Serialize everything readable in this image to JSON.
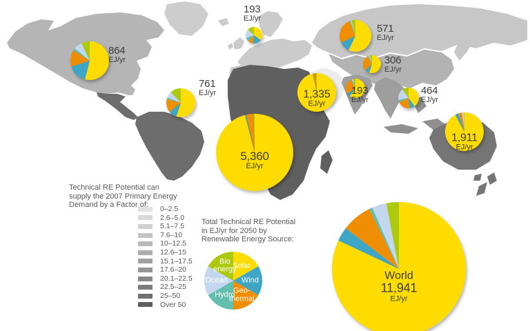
{
  "factor_legend": {
    "title_lines": [
      "Technical RE Potential can",
      "supply the 2007 Primary Energy",
      "Demand by a Factor of:"
    ],
    "items": [
      {
        "label": "0–2.5",
        "color": "#e3e3e3"
      },
      {
        "label": "2.6–5.0",
        "color": "#d9d9d9"
      },
      {
        "label": "5.1–7.5",
        "color": "#cfcfcf"
      },
      {
        "label": "7.6–10",
        "color": "#c4c4c4"
      },
      {
        "label": "10–12.5",
        "color": "#b9b9b9"
      },
      {
        "label": "12.6–15",
        "color": "#adadad"
      },
      {
        "label": "15.1–17.5",
        "color": "#a1a1a1"
      },
      {
        "label": "17.6–20",
        "color": "#959595"
      },
      {
        "label": "20.1–22.5",
        "color": "#898989"
      },
      {
        "label": "22.5–25",
        "color": "#7d7d7d"
      },
      {
        "label": "25–50",
        "color": "#6f6f6f"
      },
      {
        "label": "Over 50",
        "color": "#606060"
      }
    ]
  },
  "source_legend": {
    "title_lines": [
      "Total Technical RE Potential",
      "in EJ/yr for 2050 by",
      "Renewable Energy Source:"
    ],
    "slices": [
      {
        "name": "Solar",
        "label_lines": [
          "Solar"
        ]
      },
      {
        "name": "Wind",
        "label_lines": [
          "Wind"
        ]
      },
      {
        "name": "Geothermal",
        "label_lines": [
          "Geo-",
          "thermal"
        ]
      },
      {
        "name": "Hydro",
        "label_lines": [
          "Hydro"
        ]
      },
      {
        "name": "Ocean",
        "label_lines": [
          "Ocean"
        ]
      },
      {
        "name": "Bio energy",
        "label_lines": [
          "Bio",
          "energy"
        ]
      }
    ]
  },
  "colors": {
    "solar": "#ffdc00",
    "wind": "#3fa5c5",
    "geothermal": "#ef8e00",
    "hydro": "#62bfae",
    "ocean": "#c3d8ee",
    "bioenergy": "#adc90e",
    "legend_text": "#575756",
    "pie_label_text": "#3c3c3b"
  },
  "map": {
    "north-america": "#b5b5b5",
    "greenland": "#cdcdcd",
    "central-america": "#6d6d6d",
    "south-america": "#6d6d6d",
    "europe": "#cbcbcb",
    "africa": "#5f5f5f",
    "middle-east": "#ececec",
    "russia": "#c7c7c7",
    "east-asia": "#b3b3b3",
    "india": "#9e9e9e",
    "se-asia": "#9e9e9e",
    "indonesia": "#8f8f8f",
    "japan": "#c7c7c7",
    "australia": "#757575",
    "new-zealand": "#757575"
  },
  "chart_data": {
    "type": "pie",
    "unit": "EJ/yr",
    "source_order": [
      "solar",
      "wind",
      "geothermal",
      "hydro",
      "ocean",
      "bioenergy"
    ],
    "regions": [
      {
        "id": "north-america",
        "value": "864",
        "total_ej_yr": 864,
        "shares_pct": [
          54,
          16,
          14,
          2,
          7,
          7
        ]
      },
      {
        "id": "south-america",
        "value": "761",
        "total_ej_yr": 761,
        "shares_pct": [
          55,
          9,
          15,
          2,
          7,
          12
        ]
      },
      {
        "id": "europe",
        "value": "193",
        "total_ej_yr": 193,
        "shares_pct": [
          35,
          17,
          10,
          8,
          17,
          13
        ]
      },
      {
        "id": "russia",
        "value": "571",
        "total_ej_yr": 571,
        "shares_pct": [
          57,
          11,
          26,
          1,
          1,
          4
        ]
      },
      {
        "id": "china",
        "value": "306",
        "total_ej_yr": 306,
        "shares_pct": [
          55,
          8,
          29,
          2,
          2,
          4
        ]
      },
      {
        "id": "middle-east",
        "value": "1,335",
        "total_ej_yr": 1335,
        "shares_pct": [
          96.5,
          0.5,
          2.5,
          0,
          0,
          0.5
        ]
      },
      {
        "id": "india",
        "value": "193",
        "total_ej_yr": 193,
        "shares_pct": [
          60,
          6,
          26,
          2,
          2,
          4
        ]
      },
      {
        "id": "se-asia",
        "value": "464",
        "total_ej_yr": 464,
        "shares_pct": [
          40,
          8,
          20,
          4,
          18,
          10
        ]
      },
      {
        "id": "africa",
        "value": "5,360",
        "total_ej_yr": 5360,
        "shares_pct": [
          96,
          0.5,
          3,
          0,
          0,
          0.5
        ]
      },
      {
        "id": "australia",
        "value": "1,911",
        "total_ej_yr": 1911,
        "shares_pct": [
          92,
          3,
          3,
          0,
          1.5,
          0.5
        ]
      },
      {
        "id": "world",
        "name": "World",
        "value": "11,941",
        "total_ej_yr": 11941,
        "shares_pct": [
          82,
          3.4,
          7.3,
          0.8,
          3.5,
          3
        ]
      }
    ]
  }
}
